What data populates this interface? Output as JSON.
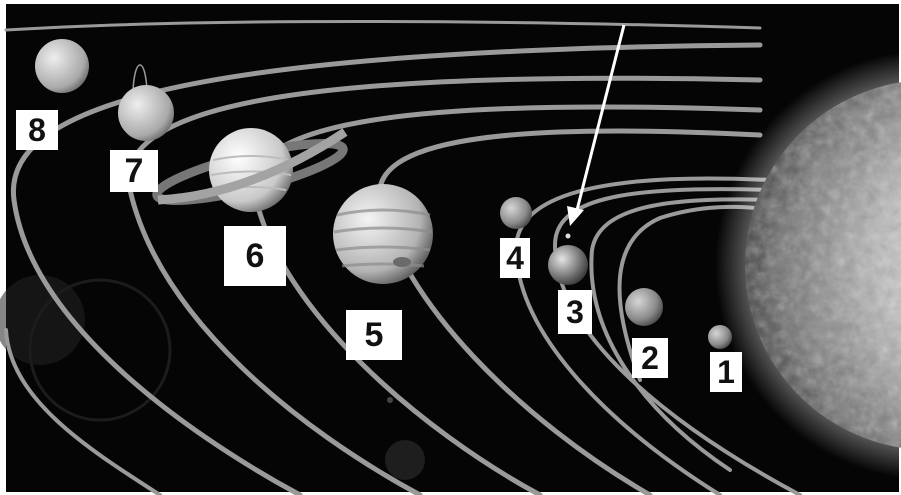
{
  "diagram": {
    "planet_labels": [
      {
        "id": "8",
        "text": "8"
      },
      {
        "id": "7",
        "text": "7"
      },
      {
        "id": "6",
        "text": "6"
      },
      {
        "id": "5",
        "text": "5"
      },
      {
        "id": "4",
        "text": "4"
      },
      {
        "id": "3",
        "text": "3"
      },
      {
        "id": "2",
        "text": "2"
      },
      {
        "id": "1",
        "text": "1"
      }
    ],
    "colors": {
      "space": "#050505",
      "orbit": "#9a9a9a",
      "label_bg": "#ffffff",
      "label_text": "#111111",
      "arrow": "#ffffff"
    }
  }
}
